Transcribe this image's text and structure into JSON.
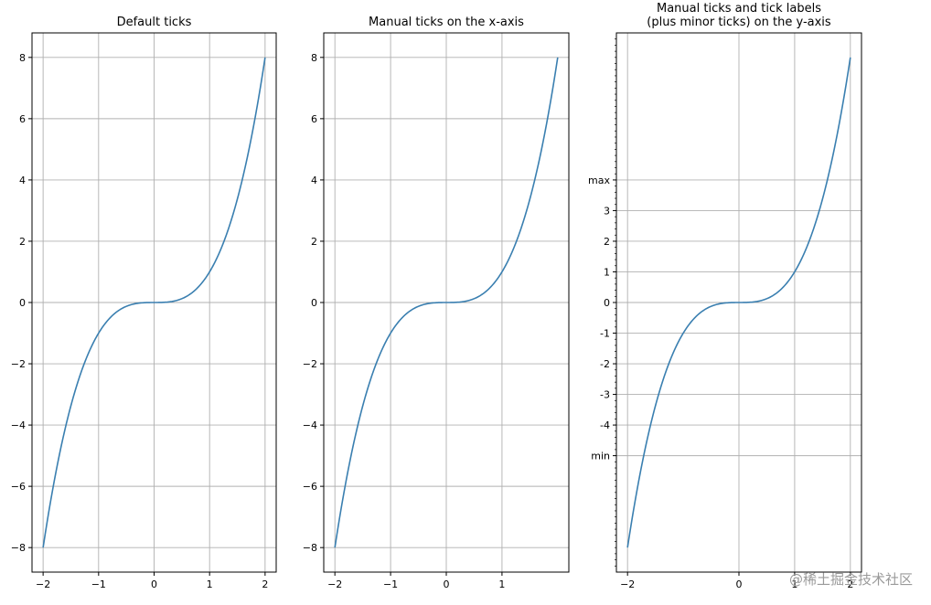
{
  "watermark": "@稀土掘金技术社区",
  "colors": {
    "line": "#3a7fb0",
    "grid": "#b0b0b0"
  },
  "chart_data": [
    {
      "type": "line",
      "title": [
        "Default ticks"
      ],
      "function": "y = x^3",
      "series": [
        {
          "x_range": [
            -2,
            2
          ],
          "formula": "x^3"
        }
      ],
      "xlim": [
        -2.2,
        2.2
      ],
      "ylim": [
        -8.8,
        8.8
      ],
      "grid": true,
      "xticks": [
        {
          "v": -2,
          "l": "−2"
        },
        {
          "v": -1,
          "l": "−1"
        },
        {
          "v": 0,
          "l": "0"
        },
        {
          "v": 1,
          "l": "1"
        },
        {
          "v": 2,
          "l": "2"
        }
      ],
      "yticks": [
        {
          "v": -8,
          "l": "−8"
        },
        {
          "v": -6,
          "l": "−6"
        },
        {
          "v": -4,
          "l": "−4"
        },
        {
          "v": -2,
          "l": "−2"
        },
        {
          "v": 0,
          "l": "0"
        },
        {
          "v": 2,
          "l": "2"
        },
        {
          "v": 4,
          "l": "4"
        },
        {
          "v": 6,
          "l": "6"
        },
        {
          "v": 8,
          "l": "8"
        }
      ],
      "minor_yticks": []
    },
    {
      "type": "line",
      "title": [
        "Manual ticks on the x-axis"
      ],
      "function": "y = x^3",
      "series": [
        {
          "x_range": [
            -2,
            2
          ],
          "formula": "x^3"
        }
      ],
      "xlim": [
        -2.2,
        2.2
      ],
      "ylim": [
        -8.8,
        8.8
      ],
      "grid": true,
      "xticks": [
        {
          "v": -2,
          "l": "−2"
        },
        {
          "v": -1,
          "l": "−1"
        },
        {
          "v": 0,
          "l": "0"
        },
        {
          "v": 1,
          "l": "1"
        }
      ],
      "yticks": [
        {
          "v": -8,
          "l": "−8"
        },
        {
          "v": -6,
          "l": "−6"
        },
        {
          "v": -4,
          "l": "−4"
        },
        {
          "v": -2,
          "l": "−2"
        },
        {
          "v": 0,
          "l": "0"
        },
        {
          "v": 2,
          "l": "2"
        },
        {
          "v": 4,
          "l": "4"
        },
        {
          "v": 6,
          "l": "6"
        },
        {
          "v": 8,
          "l": "8"
        }
      ],
      "minor_yticks": []
    },
    {
      "type": "line",
      "title": [
        "Manual ticks and tick labels",
        "(plus minor ticks) on the y-axis"
      ],
      "function": "y = x^3",
      "series": [
        {
          "x_range": [
            -2,
            2
          ],
          "formula": "x^3"
        }
      ],
      "xlim": [
        -2.2,
        2.2
      ],
      "ylim": [
        -8.8,
        8.8
      ],
      "grid": true,
      "xticks": [
        {
          "v": -2,
          "l": "−2"
        },
        {
          "v": 0,
          "l": "0"
        },
        {
          "v": 1,
          "l": "1"
        },
        {
          "v": 2,
          "l": "2"
        }
      ],
      "yticks": [
        {
          "v": -5,
          "l": "min"
        },
        {
          "v": -4,
          "l": "-4"
        },
        {
          "v": -3,
          "l": "-3"
        },
        {
          "v": -2,
          "l": "-2"
        },
        {
          "v": -1,
          "l": "-1"
        },
        {
          "v": 0,
          "l": "0"
        },
        {
          "v": 1,
          "l": "1"
        },
        {
          "v": 2,
          "l": "2"
        },
        {
          "v": 3,
          "l": "3"
        },
        {
          "v": 4,
          "l": "max"
        }
      ],
      "minor_yticks": {
        "start": -8.6,
        "stop": 8.6,
        "step": 0.2
      }
    }
  ]
}
